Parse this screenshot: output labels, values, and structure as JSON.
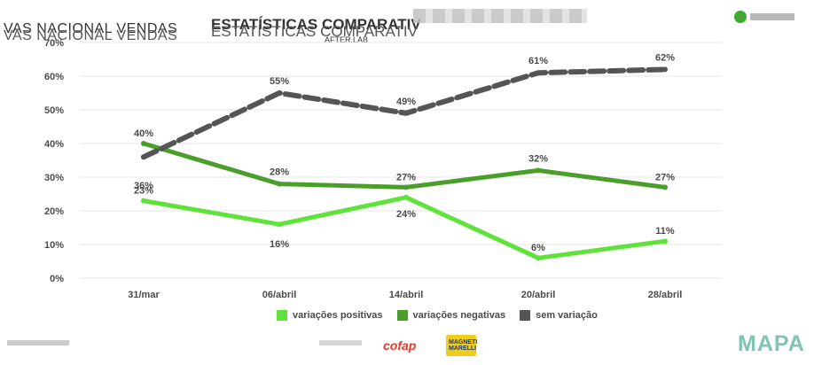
{
  "header": {
    "left_title": "VAS NACIONAL VENDAS",
    "mid_title": "ESTATÍSTICAS COMPARATIV",
    "mid_sub": "AFTER.LAB"
  },
  "footer": {
    "logo_cofap": "cofap",
    "logo_mm": "MAGNETI MARELLI",
    "logo_mapa": "MAPA"
  },
  "chart_data": {
    "type": "line",
    "categories": [
      "31/mar",
      "06/abril",
      "14/abril",
      "20/abril",
      "28/abril"
    ],
    "ylim": [
      0,
      70
    ],
    "y_ticks": [
      "0%",
      "10%",
      "20%",
      "30%",
      "40%",
      "50%",
      "60%",
      "70%"
    ],
    "grid": true,
    "legend_position": "bottom",
    "series": [
      {
        "name": "variações positivas",
        "color": "#5fe33a",
        "values": [
          23,
          16,
          24,
          6,
          11
        ],
        "labels": [
          "23%",
          "16%",
          "24%",
          "6%",
          "11%"
        ]
      },
      {
        "name": "variações negativas",
        "color": "#4a9e2a",
        "values": [
          40,
          28,
          27,
          32,
          27
        ],
        "labels": [
          "40%",
          "28%",
          "27%",
          "32%",
          "27%"
        ]
      },
      {
        "name": "sem variação",
        "color": "#555555",
        "values": [
          36,
          55,
          49,
          61,
          62
        ],
        "labels": [
          "36%",
          "55%",
          "49%",
          "61%",
          "62%"
        ]
      }
    ]
  }
}
